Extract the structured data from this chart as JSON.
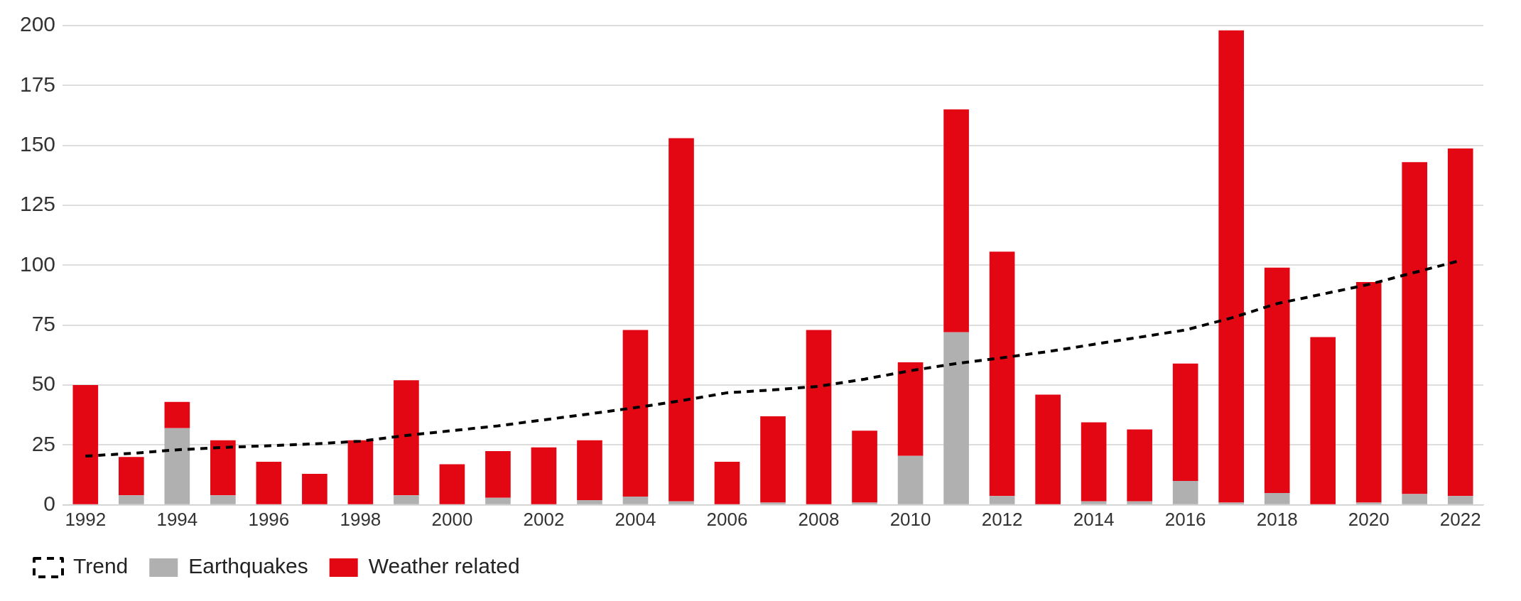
{
  "chart_data": {
    "type": "bar",
    "stacked": true,
    "grid": "y",
    "legend": "bottom left",
    "ylim": [
      0,
      200
    ],
    "yticks": [
      0,
      25,
      50,
      75,
      100,
      125,
      150,
      175,
      200
    ],
    "categories": [
      "1992",
      null,
      "1994",
      null,
      "1996",
      null,
      "1998",
      null,
      "2000",
      null,
      "2002",
      null,
      "2004",
      null,
      "2006",
      null,
      "2008",
      null,
      "2010",
      null,
      "2012",
      null,
      "2014",
      null,
      "2016",
      null,
      "2018",
      null,
      "2020",
      null,
      "2022"
    ],
    "series": [
      {
        "name": "Earthquakes",
        "color": "#b0b0b0",
        "values": [
          0,
          4,
          32,
          4,
          0,
          0,
          0,
          4,
          0,
          3,
          0,
          2,
          3.5,
          1.5,
          0,
          1,
          0,
          1,
          20.5,
          72,
          3.7,
          0,
          1.5,
          1.5,
          10,
          1,
          5,
          0,
          1,
          4.5,
          3.7
        ]
      },
      {
        "name": "Weather related",
        "color": "#e30613",
        "values": [
          50,
          16,
          11,
          23,
          18,
          13,
          27,
          48,
          17,
          19.5,
          24,
          25,
          69.5,
          151.5,
          18,
          36,
          73,
          30,
          39,
          93,
          102,
          46,
          33,
          30,
          49,
          197,
          94,
          70,
          92,
          138.5,
          145
        ]
      },
      {
        "name": "Trend",
        "type": "line",
        "color": "#000000",
        "line_style": "dashed",
        "marker": "none",
        "values": [
          20.4,
          21.5,
          23,
          24,
          24.7,
          25.5,
          26.6,
          29,
          31,
          33,
          35.5,
          38,
          40.6,
          43.5,
          46.8,
          48,
          49.5,
          52.5,
          56,
          59,
          61.4,
          64,
          67,
          70,
          73,
          78,
          84,
          88,
          92,
          97,
          102
        ]
      }
    ]
  }
}
